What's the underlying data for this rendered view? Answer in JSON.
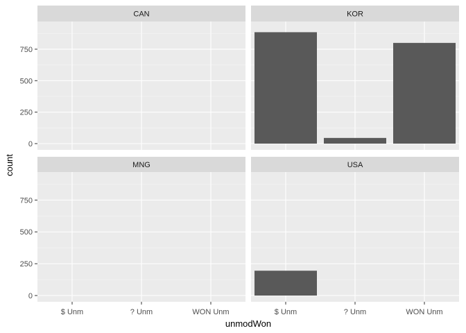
{
  "chart_data": {
    "type": "bar",
    "xlabel": "unmodWon",
    "ylabel": "count",
    "categories": [
      "$ Unm",
      "? Unm",
      "WON Unm"
    ],
    "ylim": [
      0,
      970
    ],
    "yticks": [
      0,
      250,
      500,
      750
    ],
    "grid": true,
    "bar_color": "#595959",
    "panel_background": "#ebebeb",
    "strip_background": "#d9d9d9",
    "facets": [
      {
        "name": "CAN",
        "values": [
          0,
          0,
          0
        ]
      },
      {
        "name": "KOR",
        "values": [
          885,
          45,
          800
        ]
      },
      {
        "name": "MNG",
        "values": [
          0,
          0,
          0
        ]
      },
      {
        "name": "USA",
        "values": [
          195,
          0,
          0
        ]
      }
    ]
  }
}
